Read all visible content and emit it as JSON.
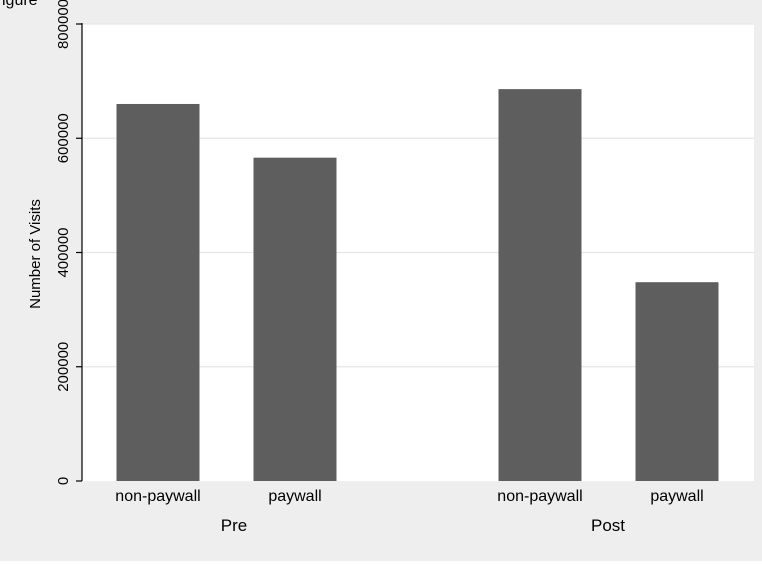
{
  "caption_fragment": "igure",
  "chart_data": {
    "type": "bar",
    "ylabel": "Number of Visits",
    "xlabel": "",
    "ylim": [
      0,
      800000
    ],
    "yticks": [
      0,
      200000,
      400000,
      600000,
      800000
    ],
    "grid": true,
    "groups": [
      {
        "label": "Pre",
        "bars": [
          {
            "label": "non-paywall",
            "value": 660000
          },
          {
            "label": "paywall",
            "value": 566000
          }
        ]
      },
      {
        "label": "Post",
        "bars": [
          {
            "label": "non-paywall",
            "value": 686000
          },
          {
            "label": "paywall",
            "value": 348000
          }
        ]
      }
    ]
  },
  "colors": {
    "bar": "#5e5e5e",
    "plot_background": "#ffffff",
    "outer_background": "#eeeeee",
    "grid": "#e6e6e6"
  }
}
